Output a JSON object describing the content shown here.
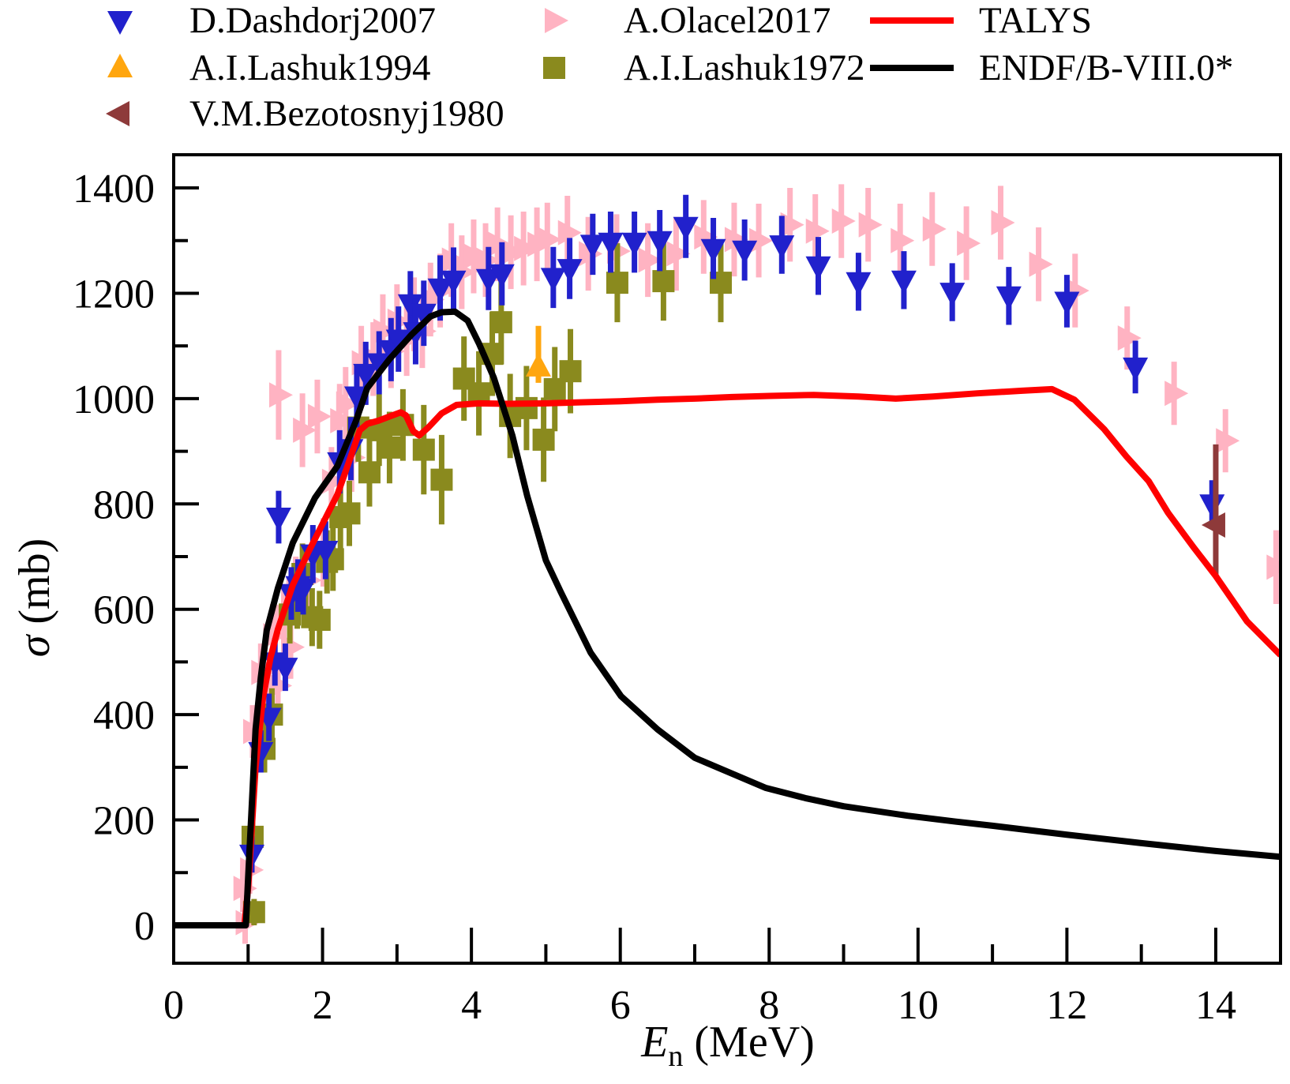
{
  "axes": {
    "xlabel_symbol": "E",
    "xlabel_sub": "n",
    "xlabel_unit": " (MeV)",
    "ylabel_symbol": "σ",
    "ylabel_unit": " (mb)"
  },
  "legend": {
    "entries": [
      {
        "label": "D.Dashdorj2007",
        "series": "D.Dashdorj2007",
        "pos": "r1 c1"
      },
      {
        "label": "A.Olacel2017",
        "series": "A.Olacel2017",
        "pos": "r1 c2"
      },
      {
        "label": "TALYS",
        "series": "TALYS",
        "pos": "r1 c3"
      },
      {
        "label": "A.I.Lashuk1994",
        "series": "A.I.Lashuk1994",
        "pos": "r2 c1"
      },
      {
        "label": "A.I.Lashuk1972",
        "series": "A.I.Lashuk1972",
        "pos": "r2 c2"
      },
      {
        "label": "ENDF/B-VIII.0*",
        "series": "ENDF/B-VIII.0*",
        "pos": "r2 c3"
      },
      {
        "label": "V.M.Bezotosnyj1980",
        "series": "V.M.Bezotosnyj1980",
        "pos": "r3 c1"
      }
    ]
  },
  "chart_data": {
    "type": "scatter",
    "title": "",
    "xlabel": "En (MeV)",
    "ylabel": "σ (mb)",
    "xlim": [
      0,
      14.87
    ],
    "ylim": [
      -72,
      1463
    ],
    "grid": false,
    "legend_position": "top",
    "x_ticks_major": [
      0,
      2,
      4,
      6,
      8,
      10,
      12,
      14
    ],
    "x_ticks_minor": [
      1,
      3,
      5,
      7,
      9,
      11,
      13
    ],
    "y_ticks_major": [
      0,
      200,
      400,
      600,
      800,
      1000,
      1200,
      1400
    ],
    "y_ticks_minor": [
      100,
      300,
      500,
      700,
      900,
      1100,
      1300
    ],
    "series": [
      {
        "name": "A.Olacel2017",
        "kind": "scatter",
        "marker": "triangle-right",
        "color": "#ffb3c2",
        "points": [
          [
            0.93,
            70,
            45
          ],
          [
            0.96,
            5,
            40
          ],
          [
            1.02,
            105,
            45
          ],
          [
            1.06,
            368,
            50
          ],
          [
            1.17,
            480,
            55
          ],
          [
            1.25,
            445,
            55
          ],
          [
            1.33,
            550,
            60
          ],
          [
            1.4,
            455,
            55
          ],
          [
            1.41,
            1007,
            85
          ],
          [
            1.48,
            588,
            60
          ],
          [
            1.57,
            528,
            60
          ],
          [
            1.64,
            640,
            60
          ],
          [
            1.73,
            940,
            70
          ],
          [
            1.8,
            655,
            60
          ],
          [
            1.93,
            966,
            70
          ],
          [
            2.01,
            708,
            65
          ],
          [
            2.12,
            843,
            65
          ],
          [
            2.23,
            958,
            70
          ],
          [
            2.31,
            990,
            70
          ],
          [
            2.39,
            888,
            65
          ],
          [
            2.52,
            1068,
            70
          ],
          [
            2.68,
            1075,
            70
          ],
          [
            2.81,
            1128,
            70
          ],
          [
            2.92,
            1090,
            70
          ],
          [
            3.0,
            1147,
            70
          ],
          [
            3.13,
            1113,
            70
          ],
          [
            3.23,
            1160,
            70
          ],
          [
            3.34,
            1128,
            70
          ],
          [
            3.45,
            1188,
            70
          ],
          [
            3.58,
            1205,
            70
          ],
          [
            3.73,
            1263,
            70
          ],
          [
            3.87,
            1240,
            70
          ],
          [
            4.03,
            1270,
            70
          ],
          [
            4.19,
            1263,
            70
          ],
          [
            4.35,
            1293,
            70
          ],
          [
            4.53,
            1278,
            70
          ],
          [
            4.7,
            1285,
            70
          ],
          [
            4.88,
            1293,
            70
          ],
          [
            5.02,
            1302,
            70
          ],
          [
            5.29,
            1315,
            70
          ],
          [
            5.57,
            1275,
            70
          ],
          [
            5.95,
            1280,
            70
          ],
          [
            6.37,
            1263,
            70
          ],
          [
            6.75,
            1275,
            70
          ],
          [
            7.12,
            1307,
            70
          ],
          [
            7.53,
            1302,
            70
          ],
          [
            7.86,
            1300,
            70
          ],
          [
            8.28,
            1330,
            70
          ],
          [
            8.62,
            1318,
            70
          ],
          [
            8.97,
            1337,
            70
          ],
          [
            9.33,
            1330,
            70
          ],
          [
            9.76,
            1300,
            70
          ],
          [
            10.19,
            1322,
            70
          ],
          [
            10.65,
            1295,
            70
          ],
          [
            11.11,
            1334,
            70
          ],
          [
            11.62,
            1255,
            70
          ],
          [
            12.11,
            1205,
            70
          ],
          [
            12.81,
            1115,
            60
          ],
          [
            13.44,
            1010,
            60
          ],
          [
            14.13,
            920,
            60
          ],
          [
            14.81,
            680,
            70
          ]
        ]
      },
      {
        "name": "A.I.Lashuk1972",
        "kind": "scatter",
        "marker": "square",
        "color": "#8a8a1e",
        "points": [
          [
            1.06,
            168,
            35
          ],
          [
            1.08,
            25,
            25
          ],
          [
            1.22,
            335,
            45
          ],
          [
            1.32,
            400,
            50
          ],
          [
            1.56,
            590,
            55
          ],
          [
            1.66,
            618,
            55
          ],
          [
            1.73,
            667,
            58
          ],
          [
            1.86,
            585,
            55
          ],
          [
            1.96,
            580,
            55
          ],
          [
            2.06,
            690,
            60
          ],
          [
            2.14,
            695,
            60
          ],
          [
            2.24,
            775,
            62
          ],
          [
            2.36,
            782,
            62
          ],
          [
            2.48,
            945,
            65
          ],
          [
            2.63,
            860,
            65
          ],
          [
            2.76,
            940,
            68
          ],
          [
            2.9,
            907,
            68
          ],
          [
            3.08,
            950,
            68
          ],
          [
            3.36,
            903,
            85
          ],
          [
            3.6,
            846,
            85
          ],
          [
            3.9,
            1038,
            80
          ],
          [
            4.1,
            1010,
            80
          ],
          [
            4.28,
            1085,
            80
          ],
          [
            4.4,
            1145,
            80
          ],
          [
            4.52,
            967,
            80
          ],
          [
            4.74,
            982,
            80
          ],
          [
            4.97,
            922,
            80
          ],
          [
            5.12,
            1018,
            80
          ],
          [
            5.33,
            1052,
            80
          ],
          [
            5.96,
            1220,
            75
          ],
          [
            6.58,
            1223,
            75
          ],
          [
            7.35,
            1220,
            75
          ]
        ]
      },
      {
        "name": "D.Dashdorj2007",
        "kind": "scatter",
        "marker": "triangle-down",
        "color": "#2121cc",
        "points": [
          [
            1.05,
            135,
            35
          ],
          [
            1.17,
            330,
            40
          ],
          [
            1.28,
            395,
            45
          ],
          [
            1.36,
            500,
            45
          ],
          [
            1.41,
            775,
            50
          ],
          [
            1.5,
            490,
            45
          ],
          [
            1.58,
            630,
            50
          ],
          [
            1.67,
            645,
            50
          ],
          [
            1.74,
            640,
            50
          ],
          [
            1.87,
            705,
            55
          ],
          [
            2.04,
            712,
            55
          ],
          [
            2.23,
            880,
            60
          ],
          [
            2.38,
            905,
            60
          ],
          [
            2.46,
            1005,
            60
          ],
          [
            2.58,
            1048,
            60
          ],
          [
            2.76,
            1068,
            60
          ],
          [
            2.92,
            1093,
            60
          ],
          [
            3.02,
            1113,
            62
          ],
          [
            3.18,
            1180,
            62
          ],
          [
            3.25,
            1127,
            62
          ],
          [
            3.36,
            1162,
            62
          ],
          [
            3.58,
            1210,
            62
          ],
          [
            3.76,
            1225,
            62
          ],
          [
            4.23,
            1228,
            60
          ],
          [
            4.41,
            1237,
            60
          ],
          [
            5.1,
            1230,
            58
          ],
          [
            5.32,
            1247,
            58
          ],
          [
            5.63,
            1293,
            58
          ],
          [
            5.87,
            1297,
            58
          ],
          [
            6.19,
            1297,
            58
          ],
          [
            6.53,
            1300,
            58
          ],
          [
            6.88,
            1327,
            60
          ],
          [
            7.25,
            1285,
            58
          ],
          [
            7.67,
            1282,
            58
          ],
          [
            8.17,
            1292,
            55
          ],
          [
            8.66,
            1252,
            55
          ],
          [
            9.2,
            1222,
            55
          ],
          [
            9.81,
            1225,
            55
          ],
          [
            10.46,
            1202,
            55
          ],
          [
            11.22,
            1195,
            55
          ],
          [
            12.0,
            1185,
            50
          ],
          [
            12.92,
            1060,
            50
          ],
          [
            13.95,
            800,
            45
          ]
        ]
      },
      {
        "name": "A.I.Lashuk1994",
        "kind": "scatter",
        "marker": "triangle-up",
        "color": "#ffa60f",
        "points": [
          [
            4.9,
            1060,
            78,
            30
          ]
        ]
      },
      {
        "name": "V.M.Bezotosnyj1980",
        "kind": "scatter",
        "marker": "triangle-left",
        "color": "#8e3a3a",
        "points": [
          [
            14.0,
            760,
            153,
            97
          ]
        ]
      },
      {
        "name": "TALYS",
        "kind": "line",
        "color": "#ff0000",
        "points": [
          [
            0,
            0
          ],
          [
            0.95,
            0
          ],
          [
            1.0,
            70
          ],
          [
            1.05,
            185
          ],
          [
            1.1,
            300
          ],
          [
            1.2,
            432
          ],
          [
            1.3,
            508
          ],
          [
            1.4,
            562
          ],
          [
            1.6,
            646
          ],
          [
            1.8,
            706
          ],
          [
            2.0,
            762
          ],
          [
            2.2,
            818
          ],
          [
            2.35,
            878
          ],
          [
            2.5,
            940
          ],
          [
            2.6,
            952
          ],
          [
            2.75,
            958
          ],
          [
            2.9,
            966
          ],
          [
            3.05,
            974
          ],
          [
            3.12,
            968
          ],
          [
            3.22,
            938
          ],
          [
            3.3,
            930
          ],
          [
            3.42,
            945
          ],
          [
            3.6,
            972
          ],
          [
            3.8,
            988
          ],
          [
            4.1,
            991
          ],
          [
            4.5,
            990
          ],
          [
            5.0,
            991
          ],
          [
            5.5,
            993
          ],
          [
            6.0,
            995
          ],
          [
            6.5,
            998
          ],
          [
            7.0,
            1000
          ],
          [
            7.5,
            1003
          ],
          [
            8.0,
            1005
          ],
          [
            8.6,
            1007
          ],
          [
            9.2,
            1004
          ],
          [
            9.7,
            1000
          ],
          [
            10.2,
            1004
          ],
          [
            10.8,
            1010
          ],
          [
            11.4,
            1015
          ],
          [
            11.8,
            1018
          ],
          [
            12.1,
            998
          ],
          [
            12.5,
            942
          ],
          [
            12.8,
            890
          ],
          [
            13.1,
            843
          ],
          [
            13.36,
            783
          ],
          [
            13.7,
            718
          ],
          [
            14.0,
            663
          ],
          [
            14.42,
            577
          ],
          [
            14.87,
            513
          ]
        ]
      },
      {
        "name": "ENDF/B-VIII.0*",
        "kind": "line",
        "color": "#000000",
        "points": [
          [
            0,
            0
          ],
          [
            0.97,
            0
          ],
          [
            1.0,
            90
          ],
          [
            1.05,
            230
          ],
          [
            1.1,
            372
          ],
          [
            1.17,
            470
          ],
          [
            1.25,
            560
          ],
          [
            1.4,
            640
          ],
          [
            1.6,
            726
          ],
          [
            1.9,
            812
          ],
          [
            2.2,
            872
          ],
          [
            2.45,
            958
          ],
          [
            2.6,
            1020
          ],
          [
            2.9,
            1075
          ],
          [
            3.2,
            1122
          ],
          [
            3.45,
            1156
          ],
          [
            3.6,
            1164
          ],
          [
            3.78,
            1165
          ],
          [
            3.95,
            1148
          ],
          [
            4.1,
            1105
          ],
          [
            4.3,
            1040
          ],
          [
            4.55,
            930
          ],
          [
            4.75,
            815
          ],
          [
            5.0,
            693
          ],
          [
            5.2,
            633
          ],
          [
            5.6,
            518
          ],
          [
            6.01,
            435
          ],
          [
            6.5,
            372
          ],
          [
            7.0,
            318
          ],
          [
            7.5,
            288
          ],
          [
            7.95,
            261
          ],
          [
            8.5,
            241
          ],
          [
            9.0,
            226
          ],
          [
            9.86,
            208
          ],
          [
            10.5,
            197
          ],
          [
            11.0,
            189
          ],
          [
            12.0,
            172
          ],
          [
            13.0,
            156
          ],
          [
            14.0,
            141
          ],
          [
            14.87,
            130
          ]
        ]
      }
    ]
  }
}
